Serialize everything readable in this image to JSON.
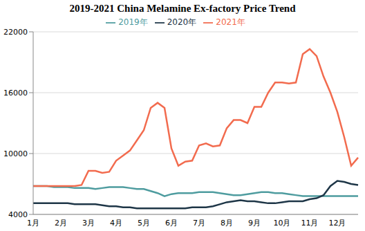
{
  "chart_data": {
    "type": "line",
    "title": "2019-2021 China Melamine Ex-factory Price Trend",
    "categories": [
      "1月",
      null,
      null,
      null,
      "2月",
      null,
      null,
      null,
      "3月",
      null,
      null,
      null,
      "4月",
      null,
      null,
      null,
      "5月",
      null,
      null,
      null,
      "6月",
      null,
      null,
      null,
      "7月",
      null,
      null,
      null,
      "8月",
      null,
      null,
      null,
      "9月",
      null,
      null,
      null,
      "10月",
      null,
      null,
      null,
      "11月",
      null,
      null,
      null,
      "12月",
      null,
      null,
      null
    ],
    "series": [
      {
        "name": "2019年",
        "color": "#4e9c9f",
        "values": [
          6800,
          6800,
          6800,
          6700,
          6700,
          6700,
          6600,
          6600,
          6600,
          6500,
          6600,
          6700,
          6700,
          6700,
          6600,
          6500,
          6500,
          6300,
          6100,
          5800,
          6000,
          6100,
          6100,
          6100,
          6200,
          6200,
          6200,
          6100,
          6000,
          5900,
          5900,
          6000,
          6100,
          6200,
          6200,
          6100,
          6100,
          6000,
          5900,
          5800,
          5800,
          5800,
          5800,
          5800,
          5800,
          5800,
          5800,
          5800
        ]
      },
      {
        "name": "2020年",
        "color": "#1e3647",
        "values": [
          5100,
          5100,
          5100,
          5100,
          5100,
          5100,
          5000,
          5000,
          5000,
          5000,
          4900,
          4800,
          4800,
          4700,
          4700,
          4600,
          4600,
          4600,
          4600,
          4600,
          4600,
          4600,
          4600,
          4700,
          4700,
          4700,
          4800,
          5000,
          5200,
          5300,
          5400,
          5300,
          5300,
          5200,
          5100,
          5100,
          5200,
          5300,
          5300,
          5300,
          5500,
          5600,
          5900,
          6800,
          7300,
          7200,
          7000,
          6900
        ]
      },
      {
        "name": "2021年",
        "color": "#f26b4e",
        "values": [
          6800,
          6800,
          6800,
          6800,
          6800,
          6800,
          6800,
          6900,
          8300,
          8300,
          8100,
          8200,
          9300,
          9800,
          10300,
          11300,
          12300,
          14500,
          15000,
          14500,
          10500,
          8800,
          9200,
          9300,
          10800,
          11000,
          10700,
          10800,
          12500,
          13300,
          13300,
          13000,
          14600,
          14600,
          16000,
          17000,
          17000,
          16900,
          17000,
          19800,
          20300,
          19600,
          17600,
          16000,
          14100,
          11600,
          8800,
          9600
        ]
      }
    ],
    "ylim": [
      4000,
      22000
    ],
    "yticks": [
      4000,
      10000,
      16000,
      22000
    ],
    "grid": true,
    "legend": "top"
  }
}
